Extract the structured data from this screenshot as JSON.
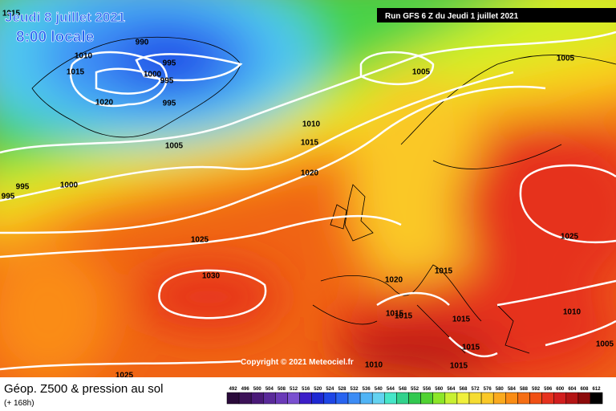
{
  "header": {
    "date": "Jeudi 8 juillet 2021",
    "time": "8:00 locale",
    "run": "Run GFS 6 Z du Jeudi 1 juillet 2021"
  },
  "copyright": "Copyright © 2021 Meteociel.fr",
  "footer": {
    "title": "Géop. Z500 & pression au sol",
    "lead": "(+ 168h)"
  },
  "isobar_labels": [
    1015,
    990,
    1010,
    995,
    1015,
    1000,
    995,
    1020,
    995,
    1005,
    1005,
    1010,
    1015,
    1005,
    1020,
    1000,
    995,
    995,
    1025,
    1025,
    1030,
    1015,
    1020,
    1015,
    1015,
    1015,
    1015,
    1015,
    1010,
    1010,
    1005,
    1025
  ],
  "scale": {
    "values": [
      492,
      496,
      500,
      504,
      508,
      512,
      516,
      520,
      524,
      528,
      532,
      536,
      540,
      544,
      548,
      552,
      556,
      560,
      564,
      568,
      572,
      576,
      580,
      584,
      588,
      592,
      596,
      600,
      604,
      608,
      612
    ],
    "colors": [
      "#2a0a3a",
      "#3c1258",
      "#4a1a78",
      "#5a2a9a",
      "#6a3ab8",
      "#7a50d0",
      "#3c1ec8",
      "#1e28d2",
      "#1e46e6",
      "#2864f0",
      "#3c8cf5",
      "#50b4f5",
      "#64d2f0",
      "#46e6c8",
      "#32d28c",
      "#32c850",
      "#50d232",
      "#8ce628",
      "#c8f032",
      "#f0f03c",
      "#f5dc32",
      "#fac828",
      "#faaa1e",
      "#fa8c14",
      "#f56e14",
      "#f05014",
      "#e6321e",
      "#d21e1e",
      "#b41414",
      "#8c0a0a",
      "#000000"
    ]
  }
}
